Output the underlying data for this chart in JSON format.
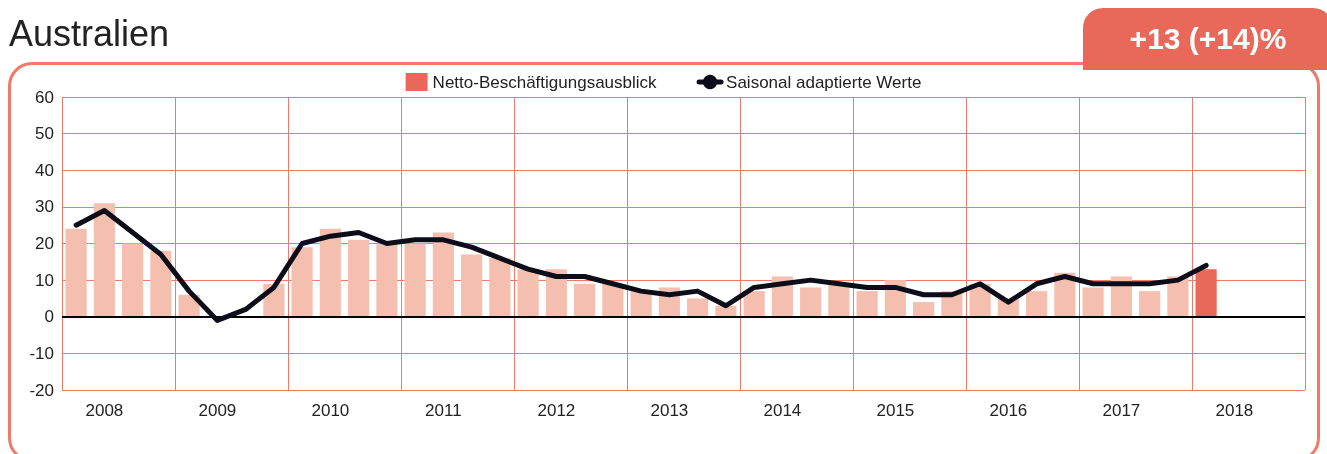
{
  "chart_data": {
    "type": "bar",
    "title": "Australien",
    "annotations": [
      "+13 (+14)%"
    ],
    "categories": [
      null,
      "2008",
      null,
      null,
      null,
      "2009",
      null,
      null,
      null,
      "2010",
      null,
      null,
      null,
      "2011",
      null,
      null,
      null,
      "2012",
      null,
      null,
      null,
      "2013",
      null,
      null,
      null,
      "2014",
      null,
      null,
      null,
      "2015",
      null,
      null,
      null,
      "2016",
      null,
      null,
      null,
      "2017",
      null,
      null,
      null,
      "2018",
      null,
      null
    ],
    "series": [
      {
        "name": "Netto-Beschäftigungsausblick",
        "color": "#e8695a",
        "colors": [
          "#f5bfb0",
          "#f5bfb0",
          "#f5bfb0",
          "#f5bfb0",
          "#f5bfb0",
          "#f5bfb0",
          "#f5bfb0",
          "#f5bfb0",
          "#f5bfb0",
          "#f5bfb0",
          "#f5bfb0",
          "#f5bfb0",
          "#f5bfb0",
          "#f5bfb0",
          "#f5bfb0",
          "#f5bfb0",
          "#f5bfb0",
          "#f5bfb0",
          "#f5bfb0",
          "#f5bfb0",
          "#f5bfb0",
          "#f5bfb0",
          "#f5bfb0",
          "#f5bfb0",
          "#f5bfb0",
          "#f5bfb0",
          "#f5bfb0",
          "#f5bfb0",
          "#f5bfb0",
          "#f5bfb0",
          "#f5bfb0",
          "#f5bfb0",
          "#f5bfb0",
          "#f5bfb0",
          "#f5bfb0",
          "#f5bfb0",
          "#f5bfb0",
          "#f5bfb0",
          "#f5bfb0",
          "#f5bfb0",
          "#e8695a",
          null,
          null,
          null
        ],
        "values": [
          24,
          31,
          20,
          18,
          6,
          null,
          0,
          9,
          19,
          24,
          21,
          20,
          20,
          23,
          17,
          16,
          13,
          13,
          9,
          9,
          7,
          8,
          5,
          3,
          7,
          11,
          8,
          9,
          7,
          10,
          4,
          7,
          9,
          5,
          7,
          12,
          8,
          11,
          7,
          11,
          13,
          null,
          null,
          null
        ]
      },
      {
        "name": "Saisonal adaptierte Werte",
        "type": "line",
        "color": "#0d0d1a",
        "values": [
          25,
          29,
          23,
          17,
          7,
          -1,
          2,
          8,
          20,
          22,
          23,
          20,
          21,
          21,
          19,
          16,
          13,
          11,
          11,
          9,
          7,
          6,
          7,
          3,
          8,
          9,
          10,
          9,
          8,
          8,
          6,
          6,
          9,
          4,
          9,
          11,
          9,
          9,
          9,
          10,
          14,
          null,
          null,
          null
        ]
      }
    ],
    "ylim": [
      -20,
      60
    ],
    "yticks": [
      -20,
      -10,
      0,
      10,
      20,
      30,
      40,
      50,
      60
    ],
    "ref_lines": [
      {
        "axis": "y",
        "value": 0,
        "color": "#000000"
      }
    ],
    "grid": true,
    "legend": "top",
    "marker": "none",
    "line_style": "solid"
  }
}
